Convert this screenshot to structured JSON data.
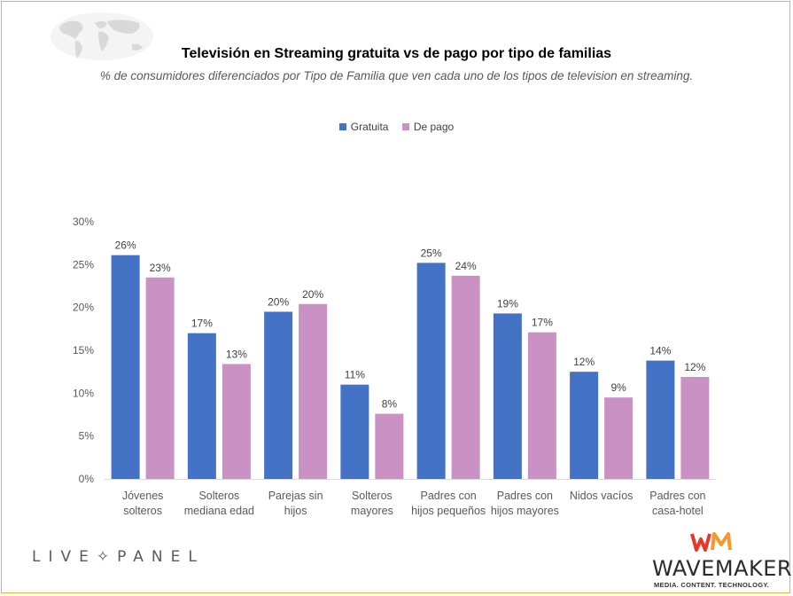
{
  "chart_data": {
    "type": "bar",
    "title": "Televisión en Streaming gratuita vs de pago por tipo de familias",
    "subtitle": "% de consumidores diferenciados por Tipo de Familia que ven cada uno de los tipos de television en streaming.",
    "categories": [
      [
        "Jóvenes",
        "solteros"
      ],
      [
        "Solteros",
        "mediana edad"
      ],
      [
        "Parejas sin",
        "hijos"
      ],
      [
        "Solteros",
        "mayores"
      ],
      [
        "Padres con",
        "hijos pequeños"
      ],
      [
        "Padres con",
        "hijos mayores"
      ],
      [
        "Nidos vacíos"
      ],
      [
        "Padres con",
        "casa-hotel"
      ]
    ],
    "series": [
      {
        "name": "Gratuita",
        "color": "#4472c4",
        "values": [
          26.1,
          17.0,
          19.5,
          11.0,
          25.2,
          19.3,
          12.5,
          13.8
        ],
        "labels": [
          "26%",
          "17%",
          "20%",
          "11%",
          "25%",
          "19%",
          "12%",
          "14%"
        ]
      },
      {
        "name": "De pago",
        "color": "#c991c4",
        "values": [
          23.5,
          13.4,
          20.4,
          7.6,
          23.7,
          17.1,
          9.5,
          11.9
        ],
        "labels": [
          "23%",
          "13%",
          "20%",
          "8%",
          "24%",
          "17%",
          "9%",
          "12%"
        ]
      }
    ],
    "ylim": [
      0,
      30
    ],
    "yticks": [
      "0%",
      "5%",
      "10%",
      "15%",
      "20%",
      "25%",
      "30%"
    ],
    "legend": "top-center",
    "grid": false
  },
  "branding": {
    "livepanel": "LIVE✧PANEL",
    "wavemaker": "WAVEMAKER",
    "wavemaker_tagline": "MEDIA. CONTENT. TECHNOLOGY."
  }
}
